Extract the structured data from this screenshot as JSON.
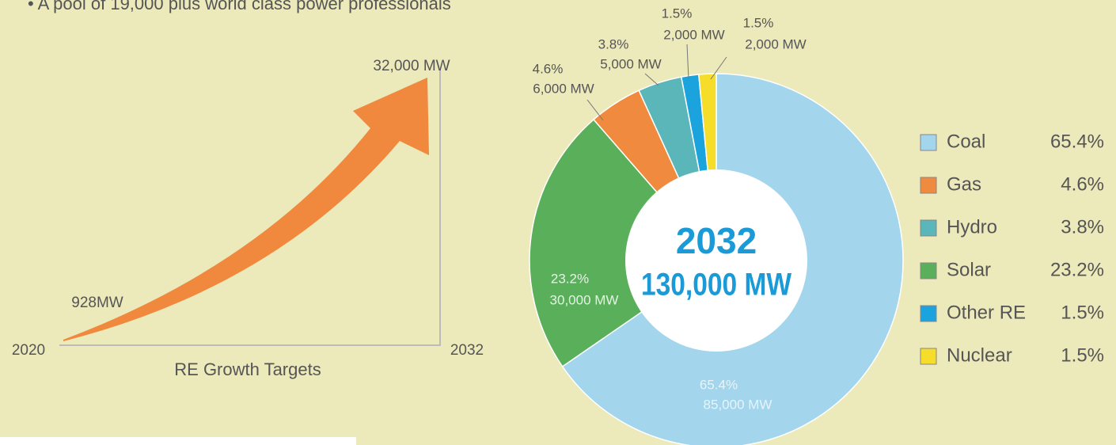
{
  "header": {
    "bullet_text": "• A pool of 19,000 plus world class power professionals"
  },
  "growth": {
    "end_label": "32,000 MW",
    "start_label": "928MW",
    "start_year": "2020",
    "end_year": "2032",
    "caption": "RE Growth Targets"
  },
  "chart_data": {
    "type": "donut",
    "center_title": "2032",
    "center_subtitle": "130,000 MW",
    "categories": [
      "Coal",
      "Gas",
      "Hydro",
      "Solar",
      "Other RE",
      "Nuclear"
    ],
    "values": [
      65.4,
      4.6,
      3.8,
      23.2,
      1.5,
      1.5
    ],
    "value_labels": [
      "65.4%",
      "4.6%",
      "3.8%",
      "23.2%",
      "1.5%",
      "1.5%"
    ],
    "mw_labels": [
      "85,000 MW",
      "6,000 MW",
      "5,000 MW",
      "30,000 MW",
      "2,000 MW",
      "2,000 MW"
    ],
    "colors": [
      "#a3d5ec",
      "#f08a3e",
      "#5ab6b9",
      "#5aaf5a",
      "#1aa3dc",
      "#f5dd2a"
    ]
  }
}
